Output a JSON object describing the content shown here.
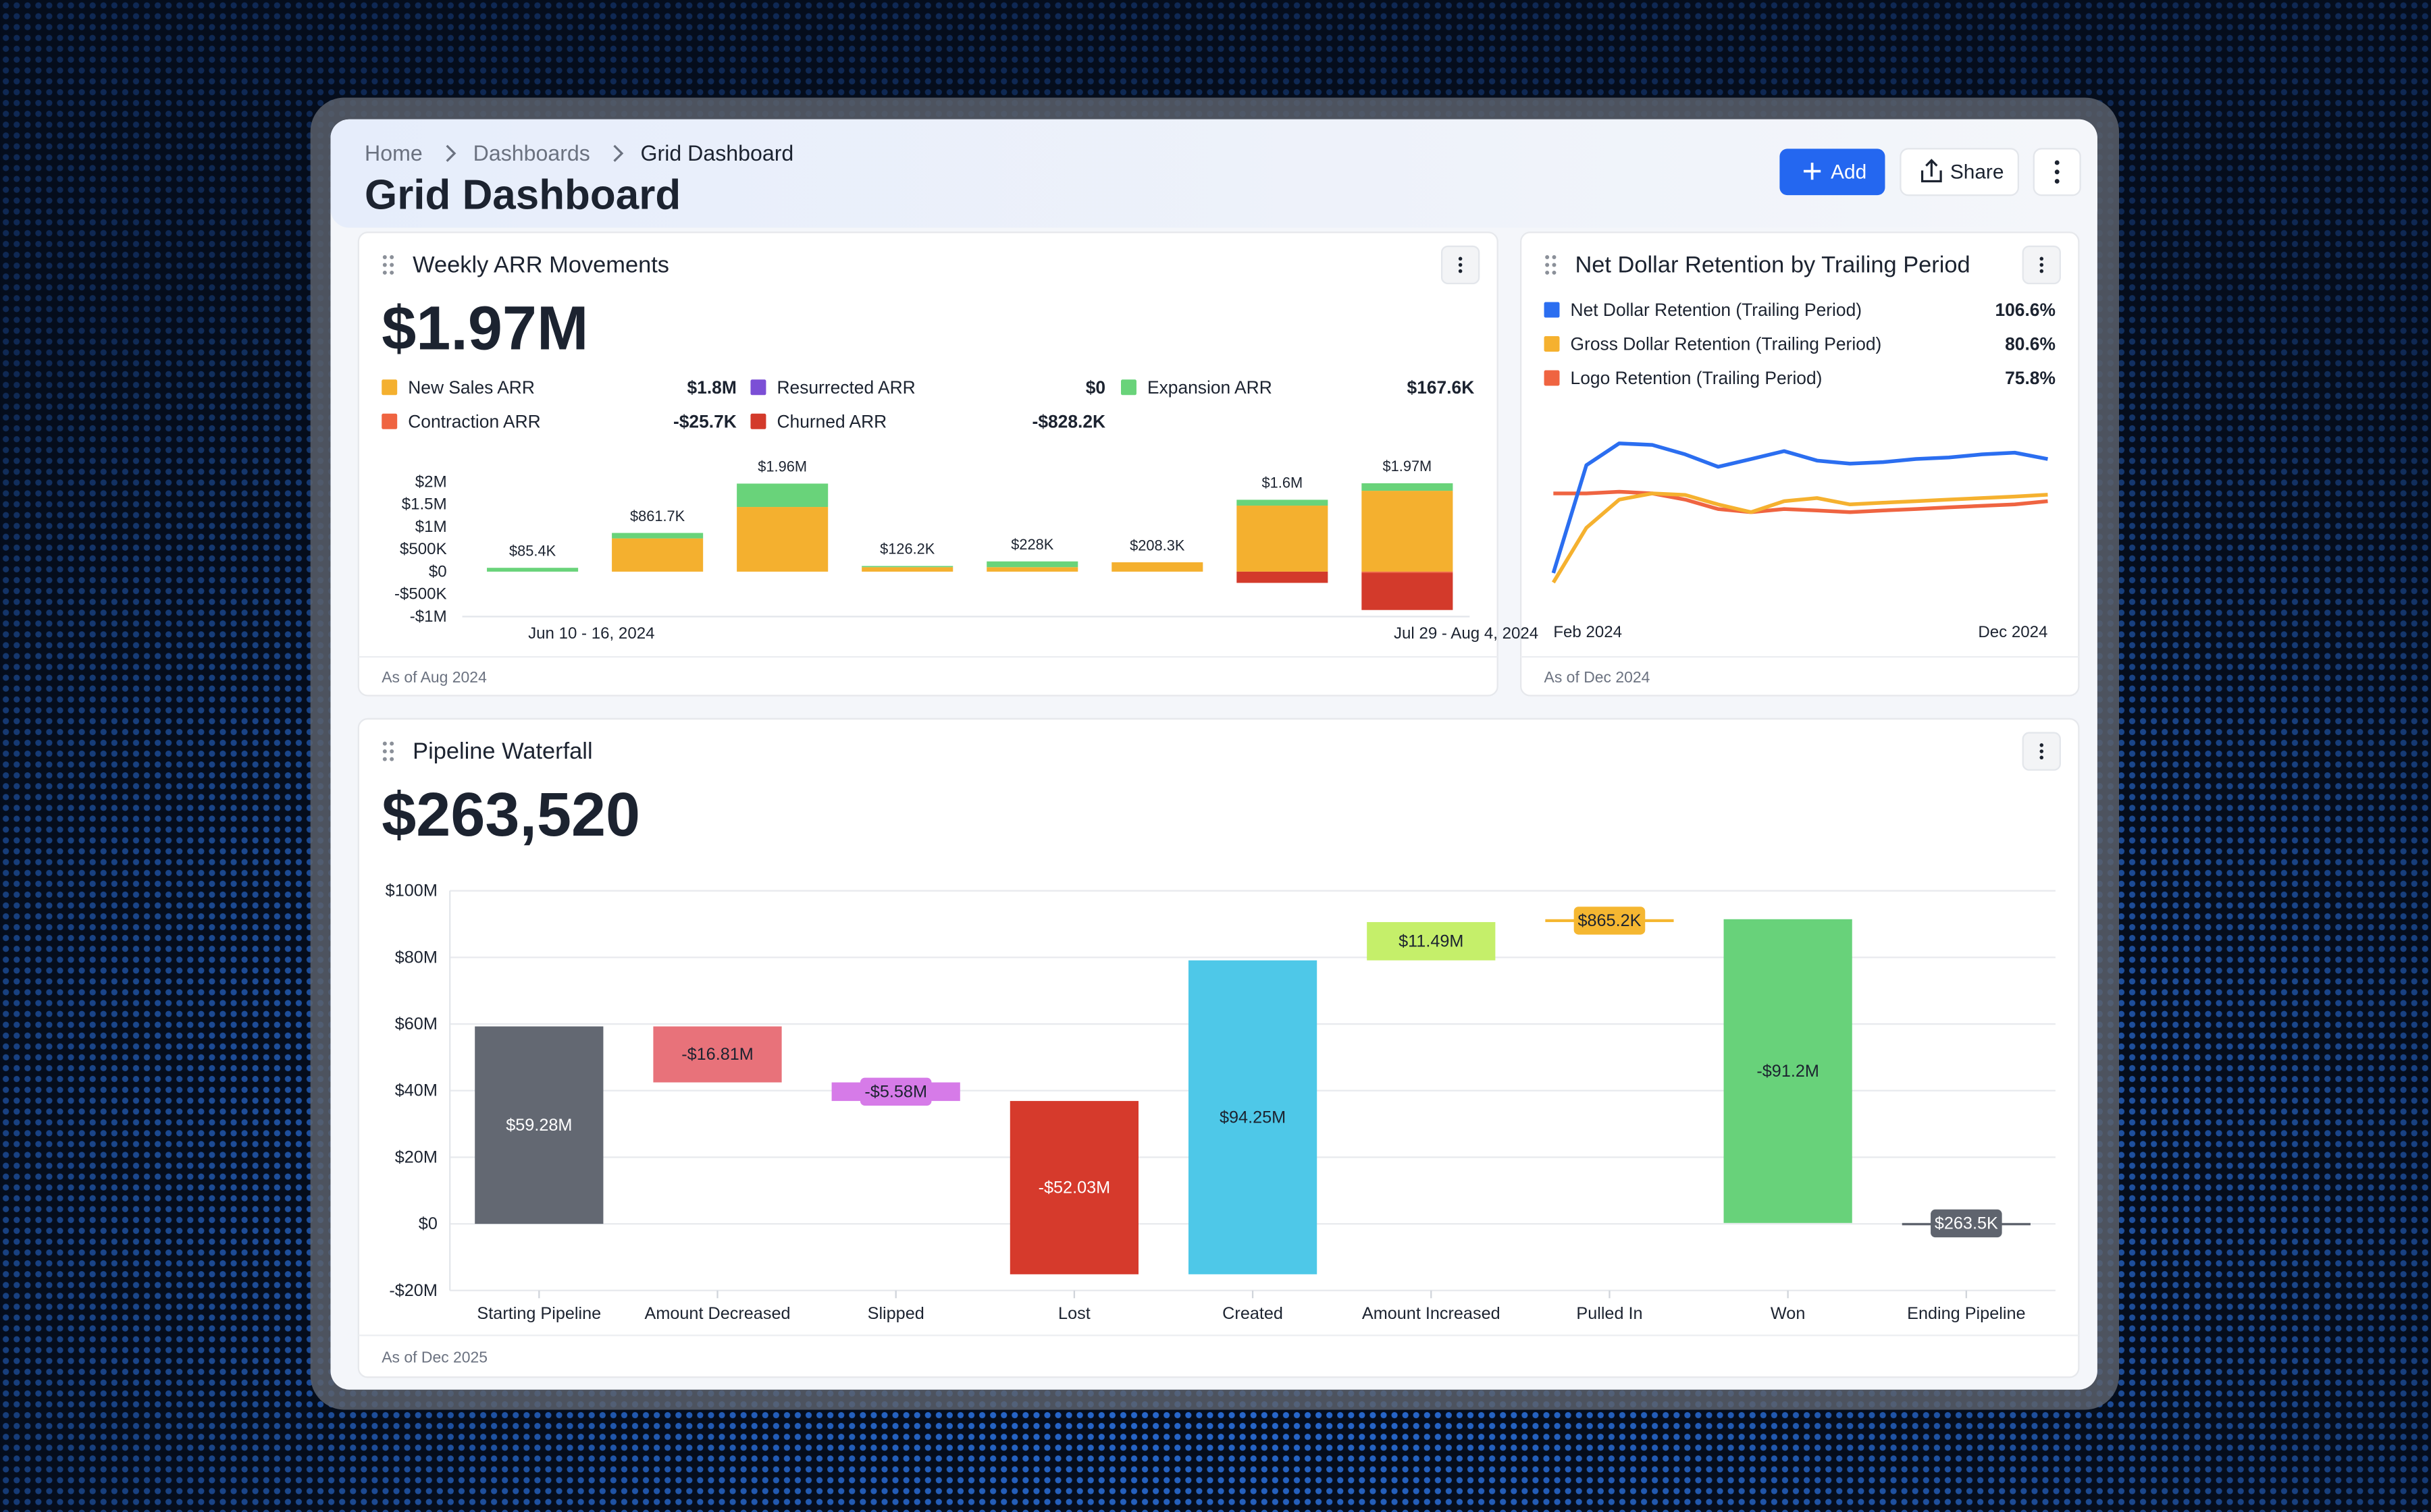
{
  "header": {
    "breadcrumbs": [
      "Home",
      "Dashboards",
      "Grid Dashboard"
    ],
    "title": "Grid Dashboard",
    "actions": {
      "add": "Add",
      "share": "Share"
    }
  },
  "chart_data": [
    {
      "type": "bar",
      "stacked": true,
      "title": "Weekly ARR Movements",
      "kpi": "$1.97M",
      "footnote": "As of Aug 2024",
      "categories": [
        "Jun 10 - 16, 2024",
        null,
        null,
        null,
        null,
        null,
        null,
        "Jul 29 - Aug 4, 2024"
      ],
      "series": [
        {
          "name": "New Sales ARR",
          "color": "#f4b02f",
          "legend_label": "$1.8M",
          "values": [
            0,
            740000,
            1440000,
            100000,
            100000,
            208300,
            1470000,
            1800000
          ]
        },
        {
          "name": "Resurrected ARR",
          "color": "#7b4fd6",
          "legend_label": "$0",
          "values": [
            0,
            0,
            0,
            0,
            0,
            0,
            0,
            0
          ]
        },
        {
          "name": "Expansion ARR",
          "color": "#69d37a",
          "legend_label": "$167.6K",
          "values": [
            85400,
            121700,
            520000,
            26200,
            128000,
            0,
            130000,
            167600
          ]
        },
        {
          "name": "Contraction ARR",
          "color": "#ef6441",
          "legend_label": "-$25.7K",
          "values": [
            0,
            0,
            0,
            0,
            0,
            0,
            0,
            -25700
          ]
        },
        {
          "name": "Churned ARR",
          "color": "#d33a2b",
          "legend_label": "-$828.2K",
          "values": [
            0,
            0,
            0,
            0,
            0,
            0,
            -250000,
            -828200
          ]
        }
      ],
      "totals": {
        "values": [
          85400,
          861700,
          1960000,
          126200,
          228000,
          208300,
          1600000,
          1970000
        ],
        "value_labels": [
          "$85.4K",
          "$861.7K",
          "$1.96M",
          "$126.2K",
          "$228K",
          "$208.3K",
          "$1.6M",
          "$1.97M"
        ]
      },
      "ylim": [
        -1000000,
        2000000
      ],
      "yticks": [
        {
          "value": 2000000,
          "label": "$2M"
        },
        {
          "value": 1500000,
          "label": "$1.5M"
        },
        {
          "value": 1000000,
          "label": "$1M"
        },
        {
          "value": 500000,
          "label": "$500K"
        },
        {
          "value": 0,
          "label": "$0"
        },
        {
          "value": -500000,
          "label": "-$500K"
        },
        {
          "value": -1000000,
          "label": "-$1M"
        }
      ]
    },
    {
      "type": "line",
      "title": "Net Dollar Retention by Trailing Period",
      "footnote": "As of Dec 2024",
      "categories": [
        "Feb 2024",
        null,
        null,
        null,
        null,
        null,
        null,
        null,
        null,
        null,
        null,
        null,
        null,
        null,
        null,
        "Dec 2024"
      ],
      "series": [
        {
          "name": "Net Dollar Retention (Trailing Period)",
          "color": "#2b6ef0",
          "legend_label": "106.6%",
          "values": [
            23.4,
            102.0,
            118.0,
            116.9,
            110.0,
            100.9,
            106.6,
            112.3,
            105.5,
            103.2,
            104.3,
            106.6,
            107.7,
            110.0,
            111.2,
            106.6
          ]
        },
        {
          "name": "Gross Dollar Retention (Trailing Period)",
          "color": "#f5b12f",
          "legend_label": "80.6%",
          "values": [
            16.5,
            56.4,
            77.0,
            81.5,
            80.4,
            73.5,
            67.8,
            75.8,
            78.1,
            73.5,
            74.7,
            75.8,
            77.0,
            78.1,
            79.2,
            80.6
          ]
        },
        {
          "name": "Logo Retention (Trailing Period)",
          "color": "#ef6441",
          "legend_label": "75.8%",
          "values": [
            81.5,
            81.5,
            82.7,
            81.5,
            77.0,
            70.1,
            67.8,
            70.1,
            69.0,
            67.8,
            69.0,
            70.1,
            71.3,
            72.4,
            73.5,
            75.8
          ]
        }
      ],
      "ylim": [
        -5,
        125
      ]
    },
    {
      "type": "waterfall",
      "title": "Pipeline Waterfall",
      "kpi": "$263,520",
      "footnote": "As of Dec 2025",
      "last_is_total": true,
      "grid": true,
      "categories": [
        "Starting Pipeline",
        "Amount Decreased",
        "Slipped",
        "Lost",
        "Created",
        "Amount Increased",
        "Pulled In",
        "Won",
        "Ending Pipeline"
      ],
      "values": [
        59280000,
        -16810000,
        -5580000,
        -52030000,
        94250000,
        11490000,
        865200,
        -91200000,
        263500
      ],
      "value_labels": [
        "$59.28M",
        "-$16.81M",
        "-$5.58M",
        "-$52.03M",
        "$94.25M",
        "$11.49M",
        "$865.2K",
        "-$91.2M",
        "$263.5K"
      ],
      "colors": [
        "#636872",
        "#e8727a",
        "#d67be8",
        "#d63a2c",
        "#4ec8e8",
        "#c5ef6a",
        "#f5b731",
        "#68d27a",
        "#5f646e"
      ],
      "ylim": [
        -20000000,
        100000000
      ],
      "yticks": [
        {
          "value": 100000000,
          "label": "$100M"
        },
        {
          "value": 80000000,
          "label": "$80M"
        },
        {
          "value": 60000000,
          "label": "$60M"
        },
        {
          "value": 40000000,
          "label": "$40M"
        },
        {
          "value": 20000000,
          "label": "$20M"
        },
        {
          "value": 0,
          "label": "$0"
        },
        {
          "value": -20000000,
          "label": "-$20M"
        }
      ]
    }
  ]
}
